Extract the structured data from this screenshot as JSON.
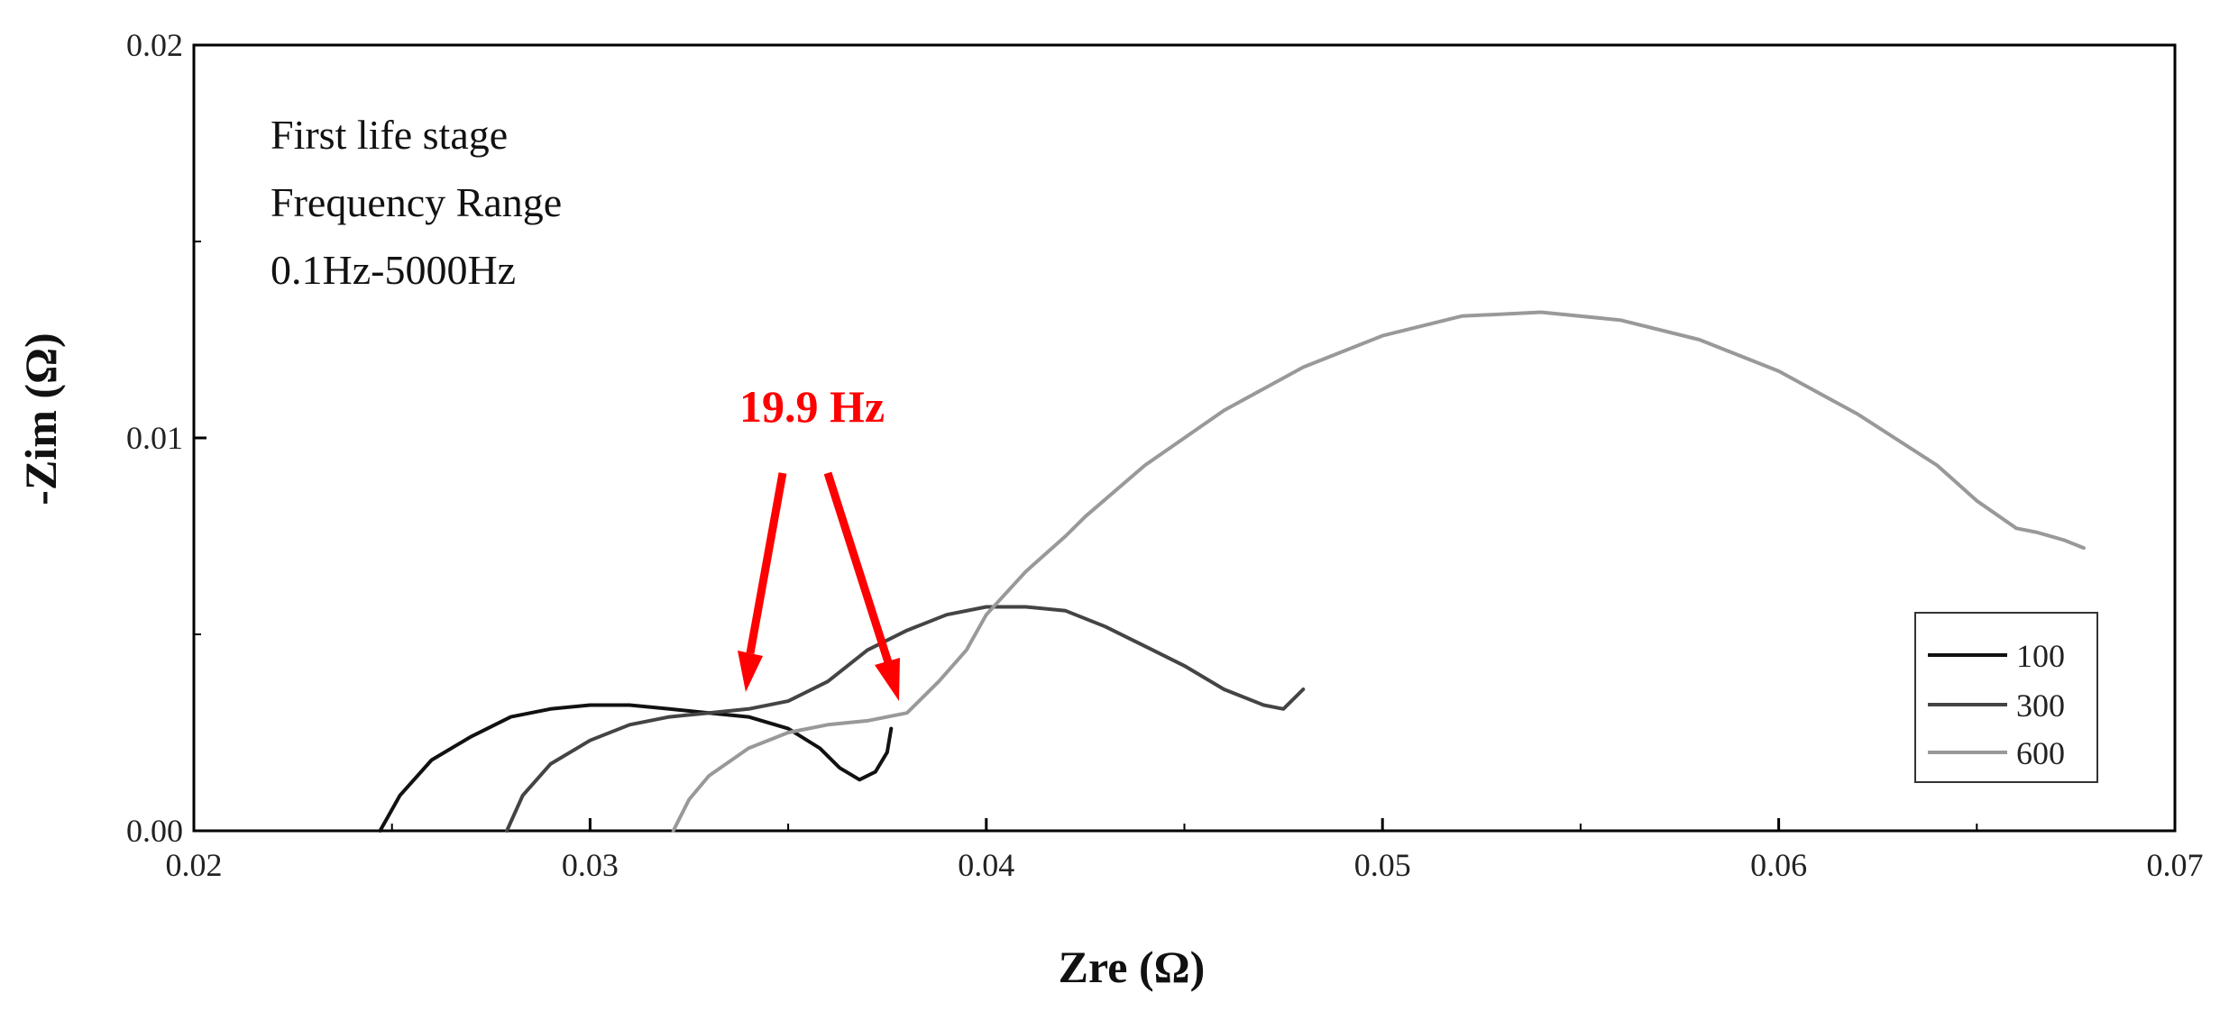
{
  "chart_data": {
    "type": "line",
    "title": "",
    "xlabel": "Zre (Ω)",
    "ylabel": "-Zim (Ω)",
    "xlim": [
      0.02,
      0.07
    ],
    "ylim": [
      0.0,
      0.02
    ],
    "xticks": [
      "0.02",
      "0.03",
      "0.04",
      "0.05",
      "0.06",
      "0.07"
    ],
    "yticks": [
      "0.00",
      "0.01",
      "0.02"
    ],
    "grid": false,
    "legend_position": "bottom-right",
    "annotations": [
      "First life stage",
      "Frequency Range",
      "0.1Hz-5000Hz"
    ],
    "frequency_label": "19.9 Hz",
    "frequency_color": "#ff0000",
    "series": [
      {
        "name": "100",
        "color": "#111111",
        "x": [
          0.0247,
          0.0252,
          0.026,
          0.027,
          0.028,
          0.029,
          0.03,
          0.031,
          0.032,
          0.033,
          0.034,
          0.035,
          0.0358,
          0.0363,
          0.0368,
          0.0372,
          0.0375,
          0.0376
        ],
        "y": [
          0.0,
          0.0009,
          0.0018,
          0.0024,
          0.0029,
          0.0031,
          0.0032,
          0.0032,
          0.0031,
          0.003,
          0.0029,
          0.0026,
          0.0021,
          0.0016,
          0.0013,
          0.0015,
          0.002,
          0.0026
        ]
      },
      {
        "name": "300",
        "color": "#444444",
        "x": [
          0.0279,
          0.0283,
          0.029,
          0.03,
          0.031,
          0.032,
          0.033,
          0.034,
          0.035,
          0.036,
          0.037,
          0.038,
          0.039,
          0.04,
          0.041,
          0.042,
          0.043,
          0.044,
          0.045,
          0.046,
          0.047,
          0.0475,
          0.048
        ],
        "y": [
          0.0,
          0.0009,
          0.0017,
          0.0023,
          0.0027,
          0.0029,
          0.003,
          0.0031,
          0.0033,
          0.0038,
          0.0046,
          0.0051,
          0.0055,
          0.0057,
          0.0057,
          0.0056,
          0.0052,
          0.0047,
          0.0042,
          0.0036,
          0.0032,
          0.0031,
          0.0036
        ]
      },
      {
        "name": "600",
        "color": "#999999",
        "x": [
          0.0321,
          0.0325,
          0.033,
          0.034,
          0.035,
          0.036,
          0.037,
          0.038,
          0.0388,
          0.0395,
          0.04,
          0.041,
          0.042,
          0.0425,
          0.044,
          0.046,
          0.048,
          0.05,
          0.052,
          0.054,
          0.056,
          0.058,
          0.06,
          0.062,
          0.064,
          0.065,
          0.066,
          0.0665,
          0.0672,
          0.0677
        ],
        "y": [
          0.0,
          0.0008,
          0.0014,
          0.0021,
          0.0025,
          0.0027,
          0.0028,
          0.003,
          0.0038,
          0.0046,
          0.0055,
          0.0066,
          0.0075,
          0.008,
          0.0093,
          0.0107,
          0.0118,
          0.0126,
          0.0131,
          0.0132,
          0.013,
          0.0125,
          0.0117,
          0.0106,
          0.0093,
          0.0084,
          0.0077,
          0.0076,
          0.0074,
          0.0072
        ]
      }
    ]
  }
}
